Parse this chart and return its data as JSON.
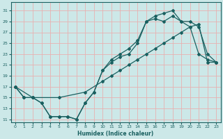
{
  "xlabel": "Humidex (Indice chaleur)",
  "bg_color": "#cce8e8",
  "grid_color": "#e8b0b0",
  "line_color": "#1a6060",
  "xlim": [
    -0.5,
    23.5
  ],
  "ylim": [
    10.5,
    32.5
  ],
  "xticks": [
    0,
    1,
    2,
    3,
    4,
    5,
    6,
    7,
    8,
    9,
    10,
    11,
    12,
    13,
    14,
    15,
    16,
    17,
    18,
    19,
    20,
    21,
    22,
    23
  ],
  "yticks": [
    11,
    13,
    15,
    17,
    19,
    21,
    23,
    25,
    27,
    29,
    31
  ],
  "line1_x": [
    0,
    1,
    2,
    3,
    4,
    5,
    6,
    7,
    8,
    9,
    10,
    11,
    12,
    13,
    14,
    15,
    16,
    17,
    18,
    19,
    20,
    21,
    22,
    23
  ],
  "line1_y": [
    17,
    15,
    15,
    14,
    11.5,
    11.5,
    11.5,
    11,
    14,
    16,
    20,
    22,
    23,
    24,
    25.5,
    29,
    29.5,
    29,
    30,
    29,
    29,
    28,
    23,
    21.5
  ],
  "line2_x": [
    0,
    1,
    2,
    3,
    4,
    5,
    6,
    7,
    8,
    9,
    10,
    11,
    12,
    13,
    14,
    15,
    16,
    17,
    18,
    19,
    20,
    21,
    22,
    23
  ],
  "line2_y": [
    17,
    15,
    15,
    14,
    11.5,
    11.5,
    11.5,
    11,
    14,
    16,
    20,
    21.5,
    22.5,
    23,
    25,
    29,
    30,
    30.5,
    31,
    29,
    28,
    23,
    22,
    21.5
  ],
  "line3_x": [
    0,
    2,
    5,
    8,
    10,
    11,
    12,
    13,
    14,
    15,
    16,
    17,
    18,
    19,
    20,
    21,
    22,
    23
  ],
  "line3_y": [
    17,
    15,
    15,
    16,
    18,
    19,
    20,
    21,
    22,
    23,
    24,
    25,
    26,
    27,
    28,
    28.5,
    21.5,
    21.5
  ]
}
